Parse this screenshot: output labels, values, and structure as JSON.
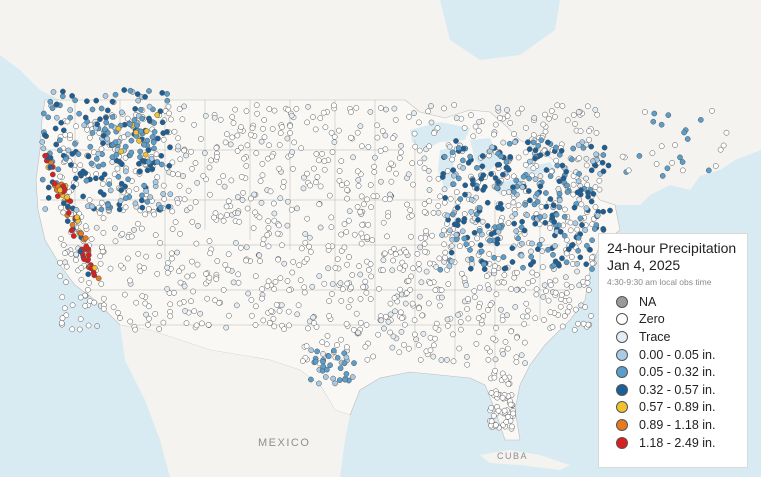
{
  "legend": {
    "title_line1": "24-hour Precipitation",
    "title_line2": "Jan 4, 2025",
    "subtitle": "4:30-9:30 am local obs time",
    "items": [
      {
        "label": "NA",
        "color": "#9a9a9a"
      },
      {
        "label": "Zero",
        "color": "#ffffff"
      },
      {
        "label": "Trace",
        "color": "#e4edf3"
      },
      {
        "label": "0.00 - 0.05 in.",
        "color": "#a9cbe6"
      },
      {
        "label": "0.05 - 0.32 in.",
        "color": "#5b9ecb"
      },
      {
        "label": "0.32 - 0.57 in.",
        "color": "#1b5f99"
      },
      {
        "label": "0.57 - 0.89 in.",
        "color": "#f2c12e"
      },
      {
        "label": "0.89 - 1.18 in.",
        "color": "#e57a1f"
      },
      {
        "label": "1.18 - 2.49 in.",
        "color": "#d7201f"
      }
    ]
  },
  "map": {
    "labels": {
      "mexico": "MEXICO",
      "cuba": "CUBA"
    },
    "colors": {
      "water": "#d9ebf2",
      "land": "#f6f5f1",
      "us_land": "#f9f8f4",
      "border": "#9c9c9c"
    }
  }
}
